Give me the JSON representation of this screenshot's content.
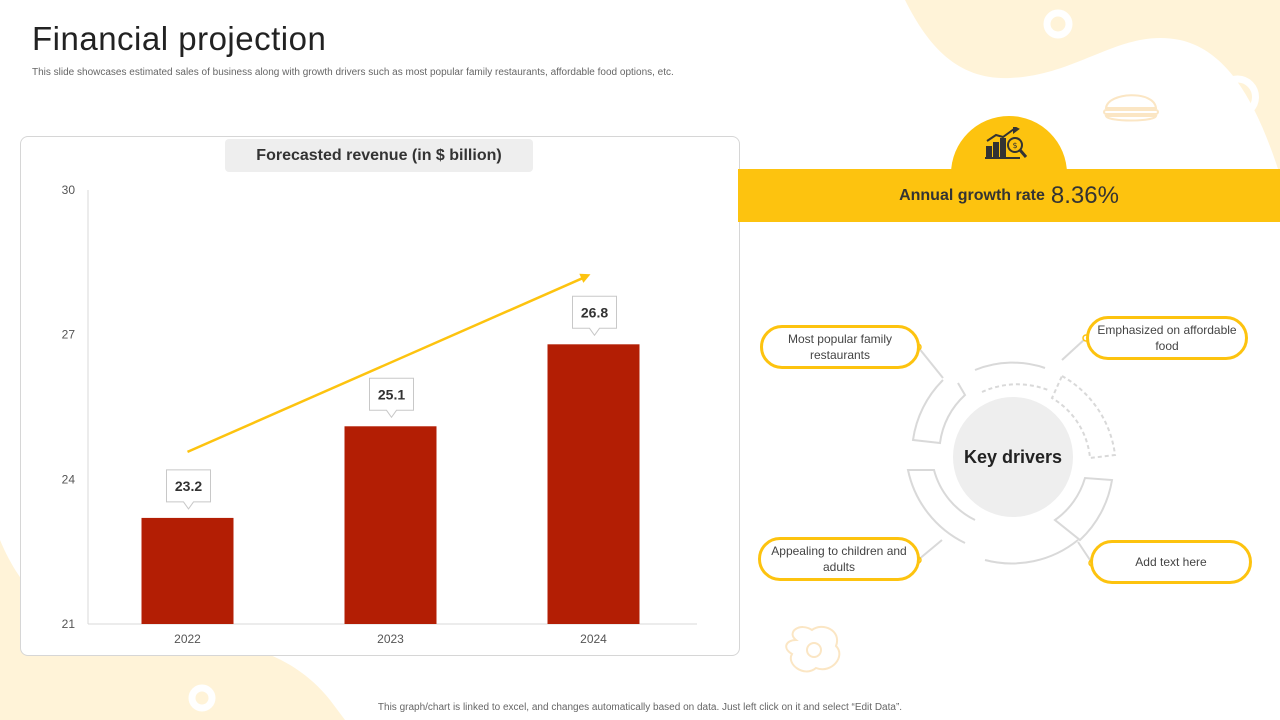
{
  "page": {
    "title": "Financial projection",
    "subtitle": "This slide showcases estimated sales of business along with growth drivers such as most popular family restaurants, affordable food options, etc.",
    "footer": "This graph/chart is linked to excel, and changes automatically based on data. Just left click on it and select “Edit Data”."
  },
  "colors": {
    "accent": "#fdc30f",
    "bar": "#b31e04",
    "background_shape": "#fff3d8"
  },
  "chart_data": {
    "type": "bar",
    "title": "Forecasted revenue (in $ billion)",
    "categories": [
      "2022",
      "2023",
      "2024"
    ],
    "values": [
      23.2,
      25.1,
      26.8
    ],
    "data_labels": [
      "23.2",
      "25.1",
      "26.8"
    ],
    "ylim": [
      21,
      30
    ],
    "yticks": [
      21,
      24,
      27,
      30
    ],
    "xlabel": "",
    "ylabel": "",
    "grid": false,
    "trend_arrow": true
  },
  "growth": {
    "label": "Annual growth rate",
    "value": "8.36%",
    "icon": "growth-chart-icon"
  },
  "drivers": {
    "center_label": "Key drivers",
    "items": [
      "Most popular family restaurants",
      "Emphasized on affordable food",
      "Appealing to children and adults",
      "Add text here"
    ]
  }
}
